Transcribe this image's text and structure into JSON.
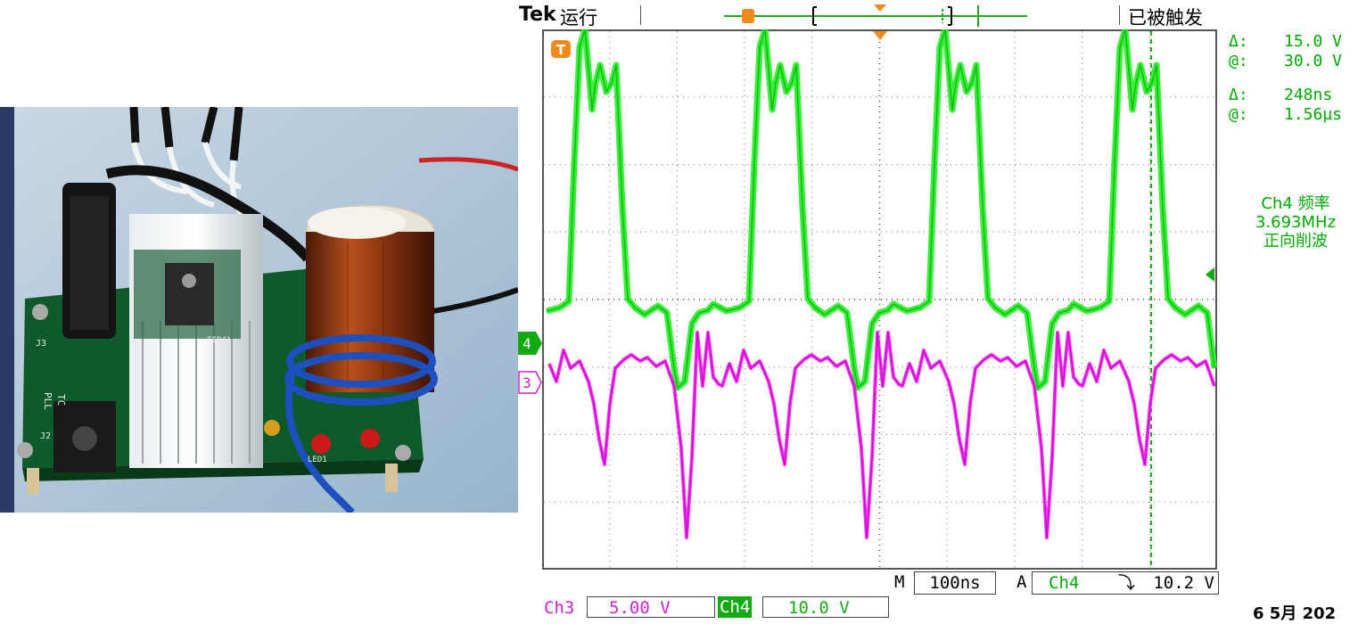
{
  "scope": {
    "brand": "Tek",
    "run_state": "运行",
    "trigger_state": "已被触发",
    "cursor": {
      "delta_v_label": "Δ:",
      "delta_v": "15.0 V",
      "at_v_label": "@:",
      "at_v": "30.0 V",
      "delta_t_label": "Δ:",
      "delta_t": "248ns",
      "at_t_label": "@:",
      "at_t": "1.56µs"
    },
    "measurement": {
      "source": "Ch4 频率",
      "value": "3.693MHz",
      "mode": "正向削波"
    },
    "timebase": {
      "prefix": "M",
      "value": "100ns"
    },
    "trigger": {
      "prefix": "A",
      "source": "Ch4",
      "slope_symbol": "⤵",
      "level": "10.2 V"
    },
    "channels": [
      {
        "name": "Ch3",
        "scale": "5.00 V",
        "marker": "3",
        "color": "#ee22ee"
      },
      {
        "name": "Ch4",
        "scale": "10.0 V",
        "marker": "4",
        "color": "#11dd11"
      }
    ],
    "date": "6 5月 202",
    "trigger_marker": "T"
  },
  "photo": {
    "pcb_labels": [
      "PLL",
      "TC",
      "J2",
      "J3",
      "LED1",
      "TIP41"
    ]
  }
}
